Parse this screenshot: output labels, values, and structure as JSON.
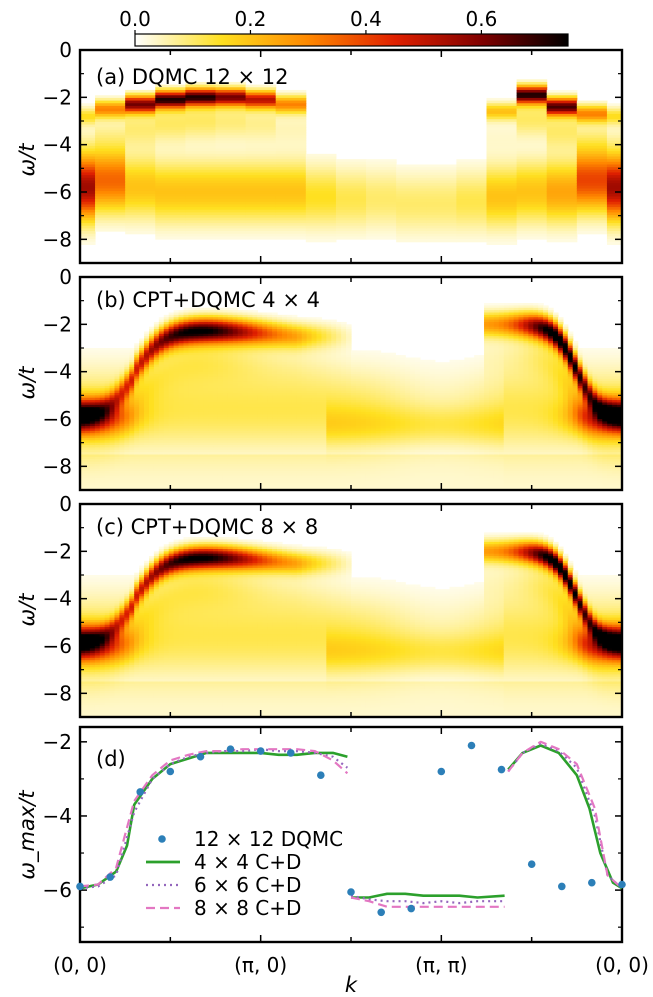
{
  "chart_data": [
    {
      "type": "colorbar",
      "ticks": [
        "0.0",
        "0.2",
        "0.4",
        "0.6"
      ],
      "tick_values": [
        0.0,
        0.2,
        0.4,
        0.6
      ],
      "range": [
        0,
        0.75
      ],
      "colormap": [
        "#ffffff",
        "#ffe020",
        "#ff8800",
        "#e02000",
        "#800000",
        "#000000"
      ]
    },
    {
      "type": "heatmap",
      "annotation": "(a) DQMC 12 × 12",
      "ylabel": "ω/t",
      "ylim": [
        -9,
        0
      ],
      "yticks": [
        "0",
        "−2",
        "−4",
        "−6",
        "−8"
      ],
      "ytick_values": [
        0,
        -2,
        -4,
        -6,
        -8
      ],
      "peaks_upper": [
        {
          "k": 0.0,
          "w": -2.8,
          "i": 0.15
        },
        {
          "k": 0.167,
          "w": -2.5,
          "i": 0.3
        },
        {
          "k": 0.333,
          "w": -2.3,
          "i": 0.6
        },
        {
          "k": 0.5,
          "w": -2.1,
          "i": 0.7
        },
        {
          "k": 0.667,
          "w": -2.0,
          "i": 0.7
        },
        {
          "k": 0.833,
          "w": -2.0,
          "i": 0.6
        },
        {
          "k": 1.0,
          "w": -2.1,
          "i": 0.5
        },
        {
          "k": 1.167,
          "w": -2.3,
          "i": 0.3
        },
        {
          "k": 2.333,
          "w": -2.6,
          "i": 0.2
        },
        {
          "k": 2.5,
          "w": -1.9,
          "i": 0.7
        },
        {
          "k": 2.667,
          "w": -2.4,
          "i": 0.65
        },
        {
          "k": 2.833,
          "w": -2.7,
          "i": 0.3
        },
        {
          "k": 3.0,
          "w": -2.8,
          "i": 0.15
        }
      ],
      "peaks_lower": [
        {
          "k": 0.0,
          "w": -5.8,
          "i": 0.55
        },
        {
          "k": 0.167,
          "w": -5.5,
          "i": 0.35
        },
        {
          "k": 0.333,
          "w": -5.8,
          "i": 0.2
        },
        {
          "k": 0.5,
          "w": -6.0,
          "i": 0.2
        },
        {
          "k": 0.667,
          "w": -6.0,
          "i": 0.2
        },
        {
          "k": 0.833,
          "w": -6.0,
          "i": 0.2
        },
        {
          "k": 1.0,
          "w": -6.0,
          "i": 0.2
        },
        {
          "k": 1.167,
          "w": -6.0,
          "i": 0.2
        },
        {
          "k": 1.333,
          "w": -6.2,
          "i": 0.15
        },
        {
          "k": 1.5,
          "w": -6.3,
          "i": 0.12
        },
        {
          "k": 1.667,
          "w": -6.3,
          "i": 0.1
        },
        {
          "k": 1.833,
          "w": -6.5,
          "i": 0.1
        },
        {
          "k": 2.0,
          "w": -6.5,
          "i": 0.1
        },
        {
          "k": 2.167,
          "w": -6.4,
          "i": 0.12
        },
        {
          "k": 2.333,
          "w": -6.2,
          "i": 0.2
        },
        {
          "k": 2.5,
          "w": -6.0,
          "i": 0.2
        },
        {
          "k": 2.667,
          "w": -6.0,
          "i": 0.25
        },
        {
          "k": 2.833,
          "w": -5.5,
          "i": 0.4
        },
        {
          "k": 3.0,
          "w": -5.8,
          "i": 0.55
        }
      ]
    },
    {
      "type": "heatmap",
      "annotation": "(b) CPT+DQMC 4 × 4",
      "ylabel": "ω/t",
      "ylim": [
        -9,
        0
      ],
      "yticks": [
        "0",
        "−2",
        "−4",
        "−6",
        "−8"
      ],
      "ytick_values": [
        0,
        -2,
        -4,
        -6,
        -8
      ]
    },
    {
      "type": "heatmap",
      "annotation": "(c) CPT+DQMC 8 × 8",
      "ylabel": "ω/t",
      "ylim": [
        -9,
        0
      ],
      "yticks": [
        "0",
        "−2",
        "−4",
        "−6",
        "−8"
      ],
      "ytick_values": [
        0,
        -2,
        -4,
        -6,
        -8
      ]
    },
    {
      "type": "line",
      "annotation": "(d)",
      "ylabel": "ω_max/t",
      "xlabel": "k",
      "ylim": [
        -7.4,
        -1.6
      ],
      "xlim": [
        0,
        3
      ],
      "yticks": [
        "−2",
        "−4",
        "−6"
      ],
      "ytick_values": [
        -2,
        -4,
        -6
      ],
      "xticks": [
        "(0, 0)",
        "(π, 0)",
        "(π, π)",
        "(0, 0)"
      ],
      "xtick_values": [
        0,
        1,
        2,
        3
      ],
      "series": [
        {
          "name": "12 × 12 DQMC",
          "style": "points",
          "color": "#2c7fb8",
          "x": [
            0.0,
            0.167,
            0.333,
            0.5,
            0.667,
            0.833,
            1.0,
            1.167,
            1.333,
            1.5,
            1.667,
            1.833,
            2.0,
            2.167,
            2.333,
            2.5,
            2.667,
            2.833,
            3.0
          ],
          "y": [
            -5.9,
            -5.65,
            -3.35,
            -2.8,
            -2.4,
            -2.2,
            -2.25,
            -2.3,
            -2.9,
            -6.05,
            -6.6,
            -6.5,
            -2.8,
            -2.1,
            -2.75,
            -5.3,
            -5.9,
            -5.8,
            -5.85
          ]
        },
        {
          "name": "4 × 4 C+D",
          "style": "solid",
          "color": "#2ca02c",
          "segments": [
            {
              "x": [
                0.0,
                0.1,
                0.2,
                0.26,
                0.3,
                0.4,
                0.5,
                0.6,
                0.7,
                0.8,
                0.9,
                1.0,
                1.1,
                1.2,
                1.3,
                1.4,
                1.48
              ],
              "y": [
                -5.95,
                -5.85,
                -5.5,
                -4.8,
                -3.7,
                -3.0,
                -2.6,
                -2.45,
                -2.3,
                -2.3,
                -2.3,
                -2.3,
                -2.35,
                -2.35,
                -2.3,
                -2.3,
                -2.4
              ]
            },
            {
              "x": [
                1.5,
                1.6,
                1.7,
                1.8,
                1.9,
                2.0,
                2.1,
                2.2,
                2.35
              ],
              "y": [
                -6.2,
                -6.2,
                -6.1,
                -6.1,
                -6.15,
                -6.15,
                -6.15,
                -6.2,
                -6.15
              ]
            },
            {
              "x": [
                2.37,
                2.45,
                2.55,
                2.65,
                2.75,
                2.82,
                2.88,
                2.95,
                3.0
              ],
              "y": [
                -2.75,
                -2.3,
                -2.1,
                -2.3,
                -2.9,
                -3.8,
                -5.0,
                -5.8,
                -5.95
              ]
            }
          ]
        },
        {
          "name": "6 × 6 C+D",
          "style": "dotted",
          "color": "#9467bd",
          "segments": [
            {
              "x": [
                0.0,
                0.1,
                0.2,
                0.3,
                0.4,
                0.5,
                0.6,
                0.7,
                0.8,
                0.9,
                1.0,
                1.1,
                1.2,
                1.3,
                1.4,
                1.48
              ],
              "y": [
                -5.95,
                -5.9,
                -5.6,
                -3.9,
                -3.0,
                -2.6,
                -2.4,
                -2.3,
                -2.25,
                -2.25,
                -2.2,
                -2.25,
                -2.25,
                -2.3,
                -2.4,
                -2.7
              ]
            },
            {
              "x": [
                1.5,
                1.6,
                1.7,
                1.8,
                1.9,
                2.0,
                2.1,
                2.2,
                2.35
              ],
              "y": [
                -6.15,
                -6.25,
                -6.3,
                -6.3,
                -6.35,
                -6.3,
                -6.35,
                -6.3,
                -6.3
              ]
            },
            {
              "x": [
                2.37,
                2.45,
                2.55,
                2.65,
                2.75,
                2.85,
                2.92,
                3.0
              ],
              "y": [
                -2.8,
                -2.3,
                -2.05,
                -2.25,
                -2.7,
                -4.0,
                -5.6,
                -5.95
              ]
            }
          ]
        },
        {
          "name": "8 × 8 C+D",
          "style": "dashed",
          "color": "#e377c2",
          "segments": [
            {
              "x": [
                0.0,
                0.1,
                0.2,
                0.3,
                0.4,
                0.5,
                0.6,
                0.7,
                0.8,
                0.9,
                1.0,
                1.1,
                1.2,
                1.3,
                1.4,
                1.48
              ],
              "y": [
                -5.9,
                -5.85,
                -5.4,
                -3.6,
                -2.9,
                -2.5,
                -2.35,
                -2.25,
                -2.25,
                -2.2,
                -2.2,
                -2.2,
                -2.2,
                -2.25,
                -2.5,
                -2.85
              ]
            },
            {
              "x": [
                1.5,
                1.6,
                1.7,
                1.8,
                1.9,
                2.0,
                2.1,
                2.2,
                2.35
              ],
              "y": [
                -6.2,
                -6.3,
                -6.45,
                -6.45,
                -6.45,
                -6.45,
                -6.45,
                -6.45,
                -6.45
              ]
            },
            {
              "x": [
                2.37,
                2.45,
                2.55,
                2.65,
                2.75,
                2.85,
                2.92,
                3.0
              ],
              "y": [
                -2.8,
                -2.3,
                -2.0,
                -2.2,
                -2.6,
                -3.8,
                -5.6,
                -5.95
              ]
            }
          ]
        }
      ],
      "legend": "lower-left"
    }
  ]
}
